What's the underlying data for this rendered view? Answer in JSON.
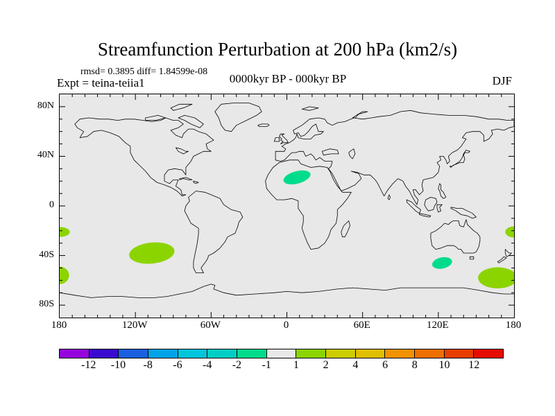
{
  "header": {
    "title": "Streamfunction Perturbation at 200 hPa (km2/s)",
    "stats": "rmsd= 0.3895 diff= 1.84599e-08",
    "experiment": "Expt = teina-teiia1",
    "period": "0000kyr BP - 000kyr BP",
    "season": "DJF"
  },
  "colors": {
    "map_background": "#E8E8E8",
    "coastline": "#000000",
    "positive_band_1_2": "#8CD400",
    "negative_band_2_1": "#00DC8C"
  },
  "axes": {
    "lat_labels": [
      {
        "label": "80N",
        "lat": 80
      },
      {
        "label": "40N",
        "lat": 40
      },
      {
        "label": "0",
        "lat": 0
      },
      {
        "label": "40S",
        "lat": -40
      },
      {
        "label": "80S",
        "lat": -80
      }
    ],
    "lon_labels": [
      {
        "label": "180",
        "lon": -180
      },
      {
        "label": "120W",
        "lon": -120
      },
      {
        "label": "60W",
        "lon": -60
      },
      {
        "label": "0",
        "lon": 0
      },
      {
        "label": "60E",
        "lon": 60
      },
      {
        "label": "120E",
        "lon": 120
      },
      {
        "label": "180",
        "lon": 180
      }
    ],
    "minor_tick_interval_deg": 10,
    "lon_major_interval_deg": 60,
    "lat_major_interval_deg": 40
  },
  "colorbar": {
    "tick_labels": [
      "-12",
      "-10",
      "-8",
      "-6",
      "-4",
      "-2",
      "-1",
      "1",
      "2",
      "4",
      "6",
      "8",
      "10",
      "12"
    ],
    "segment_colors": [
      "#9405DE",
      "#3A0ACF",
      "#1A5FE0",
      "#00A3E8",
      "#00C5DC",
      "#00CEC4",
      "#00DC8C",
      "#E8E8E8",
      "#8CD400",
      "#CCCC00",
      "#E0BE00",
      "#F29200",
      "#EE6F00",
      "#E63E00",
      "#E60C00"
    ]
  },
  "chart_data": {
    "type": "heatmap",
    "subtype": "filled-contour world map, equirectangular projection",
    "title": "Streamfunction Perturbation at 200 hPa (km2/s)",
    "units": "km2/s",
    "season": "DJF",
    "rmsd": 0.3895,
    "diff": 1.84599e-08,
    "lon_range": [
      -180,
      180
    ],
    "lat_range": [
      -90,
      90
    ],
    "contour_levels": [
      -12,
      -10,
      -8,
      -6,
      -4,
      -2,
      -1,
      1,
      2,
      4,
      6,
      8,
      10,
      12
    ],
    "anomalies": [
      {
        "lon": -180,
        "lat": -21,
        "rlon": 8,
        "rlat": 4,
        "rotate": 0,
        "value_band": "1 to 2",
        "color": "#8CD400"
      },
      {
        "lon": 180,
        "lat": -21,
        "rlon": 7,
        "rlat": 4.5,
        "rotate": 0,
        "value_band": "1 to 2",
        "color": "#8CD400"
      },
      {
        "lon": -180,
        "lat": -56,
        "rlon": 7.5,
        "rlat": 7,
        "rotate": 0,
        "value_band": "1 to 2",
        "color": "#8CD400"
      },
      {
        "lon": -107,
        "lat": -38,
        "rlon": 18,
        "rlat": 8.5,
        "rotate": -6,
        "value_band": "1 to 2",
        "color": "#8CD400"
      },
      {
        "lon": 8,
        "lat": 23,
        "rlon": 11,
        "rlat": 5,
        "rotate": -15,
        "value_band": "-2 to -1",
        "color": "#00DC8C"
      },
      {
        "lon": 123,
        "lat": -46,
        "rlon": 8,
        "rlat": 4.5,
        "rotate": -12,
        "value_band": "-2 to -1",
        "color": "#00DC8C"
      },
      {
        "lon": 167,
        "lat": -58,
        "rlon": 15.5,
        "rlat": 8.5,
        "rotate": 0,
        "value_band": "1 to 2",
        "color": "#8CD400"
      }
    ]
  }
}
